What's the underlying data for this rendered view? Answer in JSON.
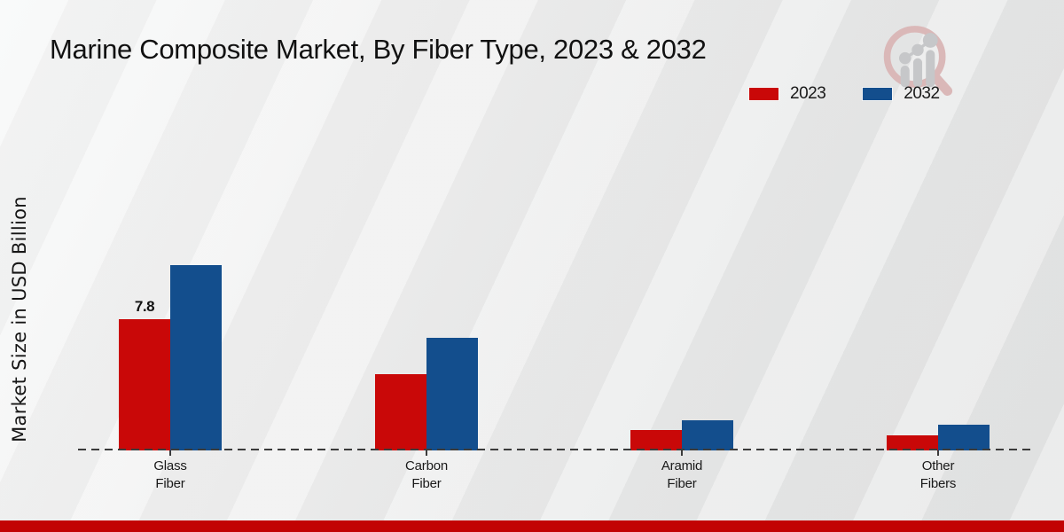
{
  "header": {
    "title": "Marine Composite Market, By Fiber Type, 2023 & 2032"
  },
  "watermark": {
    "logo": "magnifier-growth-chart-logo",
    "circle_color": "#d9b7b7",
    "bars_color": "#c6c7c9"
  },
  "legend": {
    "position": "top-right",
    "items": [
      {
        "label": "2023",
        "color": "#c90808"
      },
      {
        "label": "2032",
        "color": "#134e8d"
      }
    ]
  },
  "chart_data": {
    "type": "bar",
    "title": "Marine Composite Market, By Fiber Type, 2023 & 2032",
    "ylabel": "Market Size in USD Billion",
    "xlabel": "",
    "unit": "USD Billion",
    "categories": [
      "Glass Fiber",
      "Carbon Fiber",
      "Aramid Fiber",
      "Other Fibers"
    ],
    "series": [
      {
        "name": "2023",
        "color": "#c90808",
        "values": [
          7.8,
          4.5,
          1.2,
          0.9
        ]
      },
      {
        "name": "2032",
        "color": "#134e8d",
        "values": [
          11.0,
          6.7,
          1.8,
          1.5
        ]
      }
    ],
    "point_labels": [
      {
        "series": "2023",
        "category": "Glass Fiber",
        "text": "7.8"
      }
    ],
    "ylim": [
      0,
      12
    ],
    "grid": false,
    "y_axis_ticks_visible": false,
    "baseline_style": "dashed",
    "legend_position": "top-right"
  },
  "footer": {
    "strip_color": "#c20303"
  }
}
